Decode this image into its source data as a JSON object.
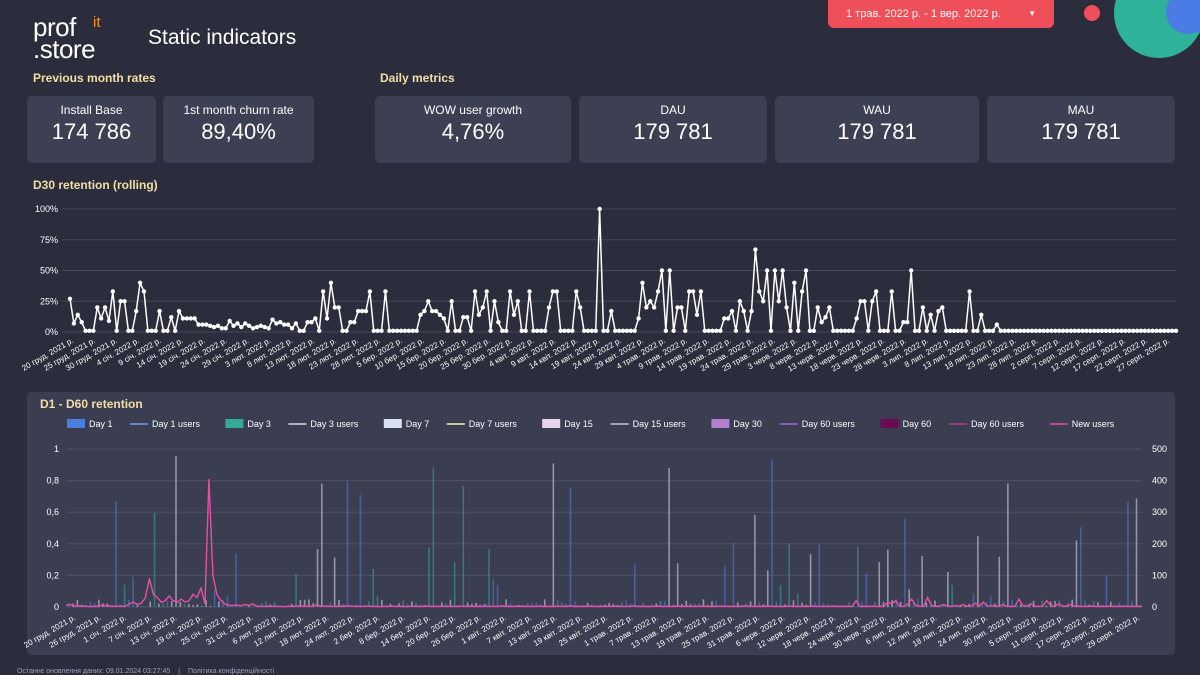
{
  "header": {
    "logo_line1": "prof",
    "logo_it": "it",
    "logo_line2": ".store",
    "title": "Static indicators",
    "date_range": "1 трав. 2022 р. - 1 вер. 2022 р."
  },
  "sections": {
    "prev_month": "Previous month rates",
    "daily": "Daily metrics",
    "d30": "D30 retention (rolling)",
    "d1d60": "D1 - D60 retention"
  },
  "kpis": {
    "install_base": {
      "label": "Install Base",
      "value": "174 786"
    },
    "churn": {
      "label": "1st month churn rate",
      "value": "89,40%"
    },
    "wow": {
      "label": "WOW user growth",
      "value": "4,76%"
    },
    "dau": {
      "label": "DAU",
      "value": "179 781"
    },
    "wau": {
      "label": "WAU",
      "value": "179 781"
    },
    "mau": {
      "label": "MAU",
      "value": "179 781"
    }
  },
  "chart_data": [
    {
      "type": "line",
      "title": "D30 retention (rolling)",
      "ylim": [
        0,
        100
      ],
      "y_ticks": [
        "0%",
        "25%",
        "50%",
        "75%",
        "100%"
      ],
      "x_tick_labels": [
        "20 груд. 2021 р.",
        "25 груд. 2021 р.",
        "30 груд. 2021 р.",
        "4 січ. 2022 р.",
        "9 січ. 2022 р.",
        "14 січ. 2022 р.",
        "19 січ. 2022 р.",
        "24 січ. 2022 р.",
        "29 січ. 2022 р.",
        "3 лют. 2022 р.",
        "8 лют. 2022 р.",
        "13 лют. 2022 р.",
        "18 лют. 2022 р.",
        "23 лют. 2022 р.",
        "28 лют. 2022 р.",
        "5 бер. 2022 р.",
        "10 бер. 2022 р.",
        "15 бер. 2022 р.",
        "20 бер. 2022 р.",
        "25 бер. 2022 р.",
        "30 бер. 2022 р.",
        "4 квіт. 2022 р.",
        "9 квіт. 2022 р.",
        "14 квіт. 2022 р.",
        "19 квіт. 2022 р.",
        "24 квіт. 2022 р.",
        "29 квіт. 2022 р.",
        "4 трав. 2022 р.",
        "9 трав. 2022 р.",
        "14 трав. 2022 р.",
        "19 трав. 2022 р.",
        "24 трав. 2022 р.",
        "29 трав. 2022 р.",
        "3 черв. 2022 р.",
        "8 черв. 2022 р.",
        "13 черв. 2022 р.",
        "18 черв. 2022 р.",
        "23 черв. 2022 р.",
        "28 черв. 2022 р.",
        "3 лип. 2022 р.",
        "8 лип. 2022 р.",
        "13 лип. 2022 р.",
        "18 лип. 2022 р.",
        "23 лип. 2022 р.",
        "28 лип. 2022 р.",
        "2 серп. 2022 р.",
        "7 серп. 2022 р.",
        "12 серп. 2022 р.",
        "17 серп. 2022 р.",
        "22 серп. 2022 р.",
        "27 серп. 2022 р."
      ],
      "values": [
        27,
        7,
        14,
        8,
        1,
        1,
        1,
        20,
        11,
        20,
        9,
        33,
        1,
        25,
        25,
        1,
        1,
        17,
        40,
        33,
        1,
        1,
        1,
        17,
        1,
        1,
        12,
        1,
        17,
        11,
        11,
        11,
        11,
        6,
        6,
        6,
        5,
        4,
        5,
        3,
        3,
        9,
        5,
        7,
        4,
        7,
        5,
        3,
        4,
        5,
        4,
        3,
        10,
        7,
        8,
        6,
        6,
        3,
        7,
        1,
        1,
        8,
        8,
        11,
        1,
        33,
        11,
        40,
        20,
        20,
        1,
        1,
        8,
        8,
        17,
        17,
        17,
        33,
        1,
        1,
        1,
        33,
        1,
        1,
        1,
        1,
        1,
        1,
        1,
        1,
        14,
        17,
        25,
        17,
        17,
        14,
        11,
        1,
        25,
        1,
        1,
        12,
        12,
        1,
        33,
        14,
        20,
        33,
        1,
        25,
        8,
        1,
        1,
        33,
        14,
        25,
        1,
        1,
        33,
        1,
        1,
        1,
        1,
        20,
        33,
        33,
        1,
        1,
        1,
        1,
        33,
        20,
        1,
        1,
        1,
        1,
        100,
        1,
        1,
        17,
        1,
        1,
        1,
        1,
        1,
        1,
        11,
        40,
        20,
        25,
        20,
        33,
        50,
        1,
        50,
        1,
        20,
        20,
        1,
        33,
        33,
        14,
        33,
        1,
        1,
        1,
        1,
        1,
        11,
        11,
        17,
        1,
        25,
        17,
        1,
        17,
        67,
        33,
        25,
        50,
        1,
        50,
        25,
        50,
        20,
        1,
        40,
        1,
        33,
        50,
        1,
        1,
        20,
        8,
        12,
        20,
        1,
        1,
        1,
        1,
        1,
        1,
        11,
        25,
        25,
        1,
        25,
        33,
        1,
        1,
        1,
        33,
        1,
        1,
        8,
        8,
        50,
        1,
        1,
        20,
        1,
        14,
        1,
        17,
        20,
        1,
        1,
        1,
        1,
        1,
        1,
        33,
        1,
        1,
        14,
        1,
        1,
        1,
        6,
        1,
        1,
        1,
        1,
        1,
        1,
        1,
        1,
        1,
        1,
        1,
        1,
        1,
        1,
        1,
        1,
        1,
        1,
        1,
        1,
        1,
        1,
        1,
        1,
        1,
        1,
        1,
        1,
        1,
        1,
        1,
        1,
        1,
        1,
        1,
        1,
        1,
        1,
        1,
        1,
        1,
        1,
        1,
        1,
        1,
        1
      ]
    },
    {
      "type": "bar",
      "title": "D1 - D60 retention",
      "ylim": [
        0,
        1
      ],
      "y2lim": [
        0,
        500
      ],
      "y_ticks": [
        "0",
        "0,2",
        "0,4",
        "0,6",
        "0,8",
        "1"
      ],
      "y2_ticks": [
        "0",
        "100",
        "200",
        "300",
        "400",
        "500"
      ],
      "legend": [
        {
          "name": "Day 1",
          "color": "#4a7fe0",
          "kind": "bar"
        },
        {
          "name": "Day 1 users",
          "color": "#6b9af0",
          "kind": "line"
        },
        {
          "name": "Day 3",
          "color": "#34a99a",
          "kind": "bar"
        },
        {
          "name": "Day 3 users",
          "color": "#d6dce8",
          "kind": "line"
        },
        {
          "name": "Day 7",
          "color": "#dde2f3",
          "kind": "bar"
        },
        {
          "name": "Day 7 users",
          "color": "#f5f0c8",
          "kind": "line"
        },
        {
          "name": "Day 15",
          "color": "#e9d4ea",
          "kind": "bar"
        },
        {
          "name": "Day 15 users",
          "color": "#c9bfea",
          "kind": "line"
        },
        {
          "name": "Day 30",
          "color": "#b57fd0",
          "kind": "bar"
        },
        {
          "name": "Day 60 users",
          "color": "#9b6bd8",
          "kind": "line"
        },
        {
          "name": "Day 60",
          "color": "#6b0a54",
          "kind": "bar"
        },
        {
          "name": "Day 60 users",
          "color": "#b0408f",
          "kind": "line"
        },
        {
          "name": "New users",
          "color": "#e94fa8",
          "kind": "line"
        }
      ],
      "x_tick_labels": [
        "20 груд. 2021 р.",
        "26 груд. 2021 р.",
        "1 січ. 2022 р.",
        "7 січ. 2022 р.",
        "13 січ. 2022 р.",
        "19 січ. 2022 р.",
        "25 січ. 2022 р.",
        "31 січ. 2022 р.",
        "6 лют. 2022 р.",
        "12 лют. 2022 р.",
        "18 лют. 2022 р.",
        "24 лют. 2022 р.",
        "2 бер. 2022 р.",
        "8 бер. 2022 р.",
        "14 бер. 2022 р.",
        "20 бер. 2022 р.",
        "26 бер. 2022 р.",
        "1 квіт. 2022 р.",
        "7 квіт. 2022 р.",
        "13 квіт. 2022 р.",
        "19 квіт. 2022 р.",
        "25 квіт. 2022 р.",
        "1 трав. 2022 р.",
        "7 трав. 2022 р.",
        "13 трав. 2022 р.",
        "19 трав. 2022 р.",
        "25 трав. 2022 р.",
        "31 трав. 2022 р.",
        "6 черв. 2022 р.",
        "12 черв. 2022 р.",
        "18 черв. 2022 р.",
        "24 черв. 2022 р.",
        "30 черв. 2022 р.",
        "6 лип. 2022 р.",
        "12 лип. 2022 р.",
        "18 лип. 2022 р.",
        "24 лип. 2022 р.",
        "30 лип. 2022 р.",
        "5 серп. 2022 р.",
        "11 серп. 2022 р.",
        "17 серп. 2022 р.",
        "23 серп. 2022 р.",
        "29 серп. 2022 р."
      ],
      "new_users": [
        5,
        8,
        3,
        4,
        2,
        3,
        1,
        2,
        2,
        6,
        4,
        3,
        2,
        3,
        2,
        3,
        10,
        15,
        8,
        12,
        30,
        90,
        40,
        30,
        15,
        20,
        35,
        20,
        15,
        25,
        15,
        20,
        40,
        30,
        60,
        10,
        405,
        100,
        40,
        20,
        10,
        5,
        5,
        6,
        4,
        8,
        5,
        10,
        3,
        2,
        2,
        2,
        3,
        2,
        2,
        1,
        3,
        2,
        2,
        4,
        3,
        2,
        2,
        6,
        4,
        2,
        3,
        2,
        2,
        3,
        2,
        4,
        3,
        2,
        2,
        2,
        3,
        2,
        2,
        1,
        2,
        2,
        3,
        2,
        2,
        2,
        1,
        3,
        2,
        2,
        2,
        3,
        2,
        2,
        2,
        3,
        2,
        2,
        2,
        2,
        3,
        2,
        2,
        2,
        2,
        2,
        3,
        2,
        2,
        2,
        4,
        2,
        2,
        2,
        3,
        2,
        2,
        2,
        2,
        3,
        2,
        2,
        2,
        2,
        3,
        2,
        2,
        4,
        2,
        2,
        2,
        2,
        3,
        2,
        2,
        2,
        2,
        2,
        3,
        2,
        2,
        2,
        2,
        4,
        2,
        2,
        2,
        2,
        2,
        3,
        2,
        2,
        2,
        2,
        3,
        2,
        2,
        2,
        2,
        2,
        3,
        2,
        2,
        2,
        2,
        3,
        2,
        2,
        2,
        2,
        2,
        4,
        2,
        2,
        2,
        2,
        2,
        3,
        2,
        2,
        2,
        2,
        3,
        2,
        2,
        2,
        2,
        2,
        3,
        2,
        2,
        2,
        2,
        3,
        2,
        2,
        2,
        2,
        2,
        20,
        2,
        2,
        2,
        3,
        2,
        2,
        2,
        15,
        10,
        20,
        2,
        2,
        8,
        25,
        5,
        3,
        2,
        30,
        4,
        3,
        2,
        8,
        3,
        2,
        5,
        3,
        8,
        2,
        3,
        12,
        3,
        15,
        3,
        5,
        3,
        2,
        8,
        2,
        2,
        2,
        25,
        4,
        3,
        10,
        2,
        2,
        3,
        20,
        5,
        2,
        10,
        3,
        2,
        8,
        3,
        3,
        2,
        2,
        3,
        2,
        2,
        2,
        2,
        3,
        2,
        2,
        2,
        3,
        2,
        2,
        2,
        2
      ]
    }
  ],
  "footer": {
    "updated": "Останнє оновлення даних: 09.01.2024 03:27:45",
    "sep": "|",
    "privacy": "Політика конфіденційності"
  }
}
